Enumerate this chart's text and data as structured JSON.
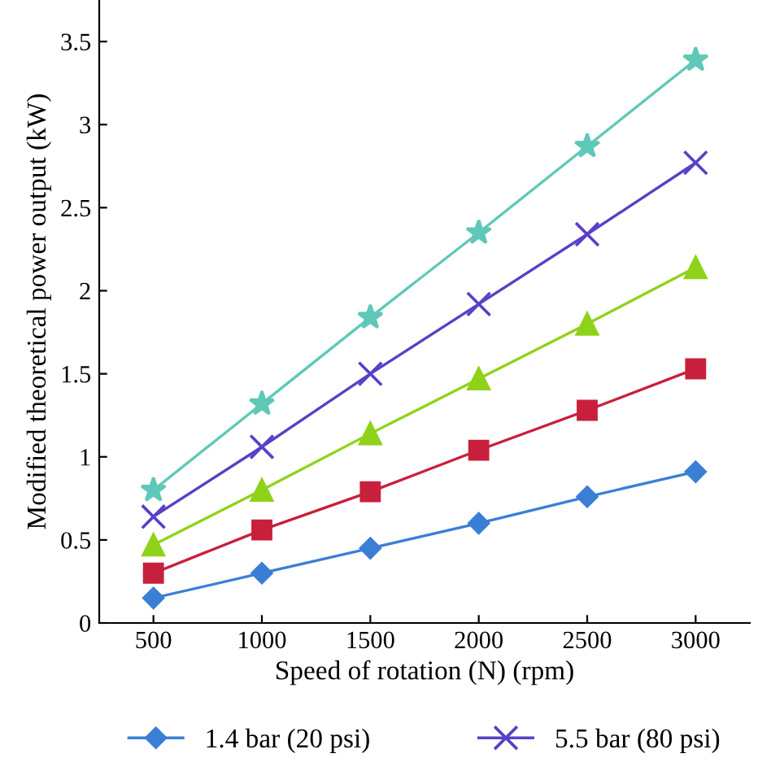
{
  "chart_data": {
    "type": "line",
    "xlabel": "Speed of rotation (N) (rpm)",
    "ylabel": "Modified theoretical power output (kW)",
    "categories": [
      "500",
      "1000",
      "1500",
      "2000",
      "2500",
      "3000"
    ],
    "series": [
      {
        "name": "1.4 bar (20 psi)",
        "color": "#3a7fd5",
        "marker": "diamond",
        "values": [
          0.15,
          0.3,
          0.45,
          0.6,
          0.76,
          0.91
        ]
      },
      {
        "color": "#c8203c",
        "marker": "square",
        "values": [
          0.3,
          0.56,
          0.79,
          1.04,
          1.28,
          1.53
        ]
      },
      {
        "color": "#8fd21a",
        "marker": "triangle",
        "values": [
          0.47,
          0.8,
          1.14,
          1.47,
          1.8,
          2.14
        ]
      },
      {
        "name": "5.5 bar (80 psi)",
        "color": "#5a3fc8",
        "marker": "cross",
        "values": [
          0.64,
          1.06,
          1.5,
          1.92,
          2.34,
          2.77
        ]
      },
      {
        "color": "#5fc8b8",
        "marker": "star",
        "values": [
          0.8,
          1.32,
          1.84,
          2.35,
          2.87,
          3.39
        ]
      }
    ],
    "ylim": [
      0,
      3.75
    ],
    "yticks": [
      0,
      0.5,
      1,
      1.5,
      2,
      2.5,
      3,
      3.5
    ],
    "grid": false,
    "legend": "bottom",
    "line_style": "solid"
  }
}
